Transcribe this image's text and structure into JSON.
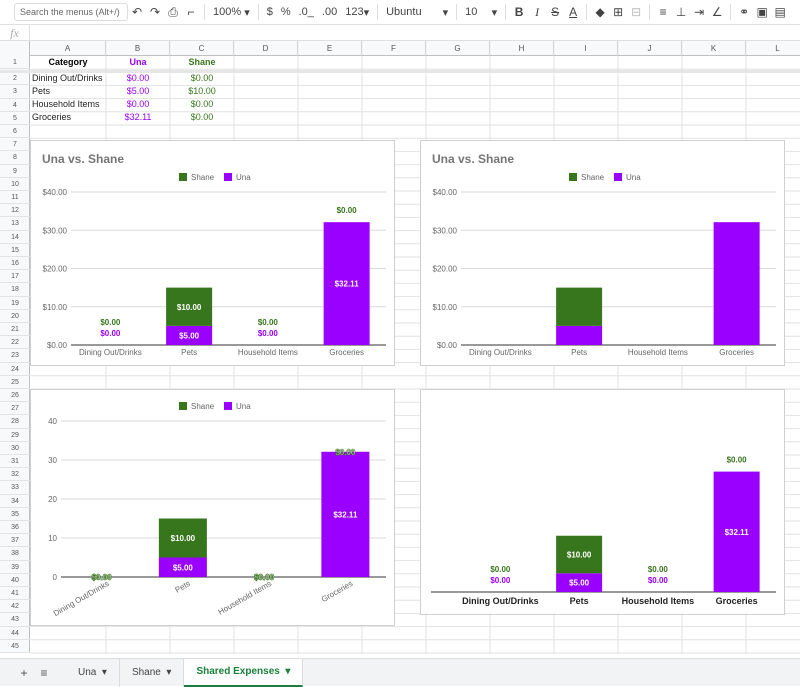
{
  "toolbar": {
    "search_placeholder": "Search the menus (Alt+/)",
    "zoom": "100%",
    "currency": "$",
    "percent": "%",
    "dec_less": ".0_",
    "dec_more": ".00",
    "format_more": "123",
    "font": "Ubuntu",
    "font_size": "10",
    "bold": "B",
    "italic": "I",
    "strike": "S",
    "text_color": "A"
  },
  "formula_bar": {
    "label": "fx"
  },
  "columns": [
    "A",
    "B",
    "C",
    "D",
    "E",
    "F",
    "G",
    "H",
    "I",
    "J",
    "K",
    "L"
  ],
  "rows": [
    "1",
    "2",
    "3",
    "4",
    "5",
    "6",
    "7",
    "8",
    "9",
    "10",
    "11",
    "12",
    "13",
    "14",
    "15",
    "16",
    "17",
    "18",
    "19",
    "20",
    "21",
    "22",
    "23",
    "24",
    "25",
    "26",
    "27",
    "28",
    "29",
    "30",
    "31",
    "32",
    "33",
    "34",
    "35",
    "36",
    "37",
    "38",
    "39",
    "40",
    "41",
    "42",
    "43",
    "44",
    "45"
  ],
  "table": {
    "headers": [
      "Category",
      "Una",
      "Shane"
    ],
    "rows": [
      [
        "Dining Out/Drinks",
        "$0.00",
        "$0.00"
      ],
      [
        "Pets",
        "$5.00",
        "$10.00"
      ],
      [
        "Household Items",
        "$0.00",
        "$0.00"
      ],
      [
        "Groceries",
        "$32.11",
        "$0.00"
      ]
    ]
  },
  "colors": {
    "una": "#9900ff",
    "shane": "#38761d"
  },
  "chart_data": [
    {
      "type": "bar",
      "stacked": true,
      "title": "Una vs. Shane",
      "categories": [
        "Dining Out/Drinks",
        "Pets",
        "Household Items",
        "Groceries"
      ],
      "series": [
        {
          "name": "Una",
          "values": [
            0,
            5,
            0,
            32.11
          ],
          "labels": [
            "$0.00",
            "$5.00",
            "$0.00",
            "$32.11"
          ]
        },
        {
          "name": "Shane",
          "values": [
            0,
            10,
            0,
            0
          ],
          "labels": [
            "$0.00",
            "$10.00",
            "$0.00",
            "$0.00"
          ]
        }
      ],
      "legend": [
        "Shane",
        "Una"
      ],
      "yticks": [
        "$0.00",
        "$10.00",
        "$20.00",
        "$30.00",
        "$40.00"
      ],
      "ylim": [
        0,
        40
      ],
      "data_labels": true,
      "legend_position": "top"
    },
    {
      "type": "bar",
      "stacked": true,
      "title": "Una vs. Shane",
      "categories": [
        "Dining Out/Drinks",
        "Pets",
        "Household Items",
        "Groceries"
      ],
      "series": [
        {
          "name": "Una",
          "values": [
            0,
            5,
            0,
            32.11
          ]
        },
        {
          "name": "Shane",
          "values": [
            0,
            10,
            0,
            0
          ]
        }
      ],
      "legend": [
        "Shane",
        "Una"
      ],
      "yticks": [
        "$0.00",
        "$10.00",
        "$20.00",
        "$30.00",
        "$40.00"
      ],
      "ylim": [
        0,
        40
      ],
      "data_labels": false,
      "legend_position": "top"
    },
    {
      "type": "bar",
      "stacked": true,
      "title": "",
      "categories": [
        "Dining Out/Drinks",
        "Pets",
        "Household Items",
        "Groceries"
      ],
      "series": [
        {
          "name": "Una",
          "values": [
            0,
            5,
            0,
            32.11
          ],
          "labels": [
            "$0.00",
            "$5.00",
            "$0.00",
            "$32.11"
          ]
        },
        {
          "name": "Shane",
          "values": [
            0,
            10,
            0,
            0
          ],
          "labels": [
            "$0.00",
            "$10.00",
            "$0.00",
            "$0.00"
          ]
        }
      ],
      "legend": [
        "Shane",
        "Una"
      ],
      "yticks": [
        "0",
        "10",
        "20",
        "30",
        "40"
      ],
      "ylim": [
        0,
        40
      ],
      "data_labels": true,
      "x_labels_rotated": true,
      "legend_position": "top"
    },
    {
      "type": "bar",
      "stacked": true,
      "title": "",
      "categories": [
        "Dining Out/Drinks",
        "Pets",
        "Household Items",
        "Groceries"
      ],
      "series": [
        {
          "name": "Una",
          "values": [
            0,
            5,
            0,
            32.11
          ],
          "labels": [
            "$0.00",
            "$5.00",
            "$0.00",
            "$32.11"
          ]
        },
        {
          "name": "Shane",
          "values": [
            0,
            10,
            0,
            0
          ],
          "labels": [
            "$0.00",
            "$10.00",
            "$0.00",
            "$0.00"
          ]
        }
      ],
      "legend": [],
      "yticks": [],
      "ylim": [
        0,
        40
      ],
      "data_labels": true,
      "x_labels_bold": true,
      "legend_position": "none"
    }
  ],
  "sheet_tabs": {
    "add": "+",
    "list": "≡",
    "tabs": [
      "Una",
      "Shane",
      "Shared Expenses"
    ],
    "active": "Shared Expenses"
  }
}
